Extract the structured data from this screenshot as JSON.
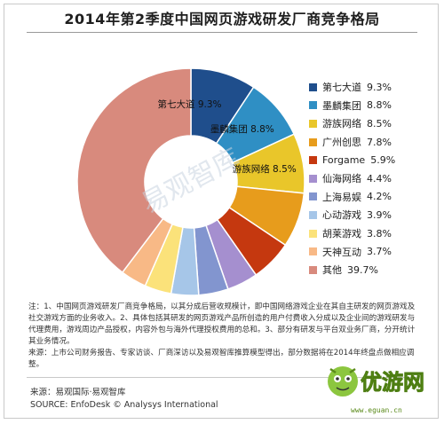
{
  "chart_data": {
    "type": "pie",
    "subtype": "donut",
    "title": "2014年第2季度中国网页游戏研发厂商竞争格局",
    "series": [
      {
        "name": "第七大道",
        "value": 9.3,
        "label": "9.3%",
        "color": "#1f4e8c"
      },
      {
        "name": "墨麟集团",
        "value": 8.8,
        "label": "8.8%",
        "color": "#2f8fc4"
      },
      {
        "name": "游族网络",
        "value": 8.5,
        "label": "8.5%",
        "color": "#e9c62a"
      },
      {
        "name": "广州创思",
        "value": 7.8,
        "label": "7.8%",
        "color": "#e79c1c"
      },
      {
        "name": "Forgame",
        "value": 5.9,
        "label": "5.9%",
        "color": "#c5380f"
      },
      {
        "name": "仙海网络",
        "value": 4.4,
        "label": "4.4%",
        "color": "#a58fcf"
      },
      {
        "name": "上海易娱",
        "value": 4.2,
        "label": "4.2%",
        "color": "#8295cf"
      },
      {
        "name": "心动游戏",
        "value": 3.9,
        "label": "3.9%",
        "color": "#a6c6e8"
      },
      {
        "name": "胡莱游戏",
        "value": 3.8,
        "label": "3.8%",
        "color": "#fbe27a"
      },
      {
        "name": "天神互动",
        "value": 3.7,
        "label": "3.7%",
        "color": "#f8b986"
      },
      {
        "name": "其他",
        "value": 39.7,
        "label": "39.7%",
        "color": "#d88a7d"
      }
    ],
    "inline_labels": [
      {
        "text": "第七大道  9.3%"
      },
      {
        "text": "墨麟集团  8.8%"
      },
      {
        "text": "游族网络  8.5%"
      }
    ],
    "legend_position": "right",
    "watermark": "易观智库"
  },
  "notes": {
    "note_text": "注：1、中国网页游戏研发厂商竞争格局，以其分成后营收规模计，即中国网络游戏企业在其自主研发的网页游戏及社交游戏方面的业务收入。2、具体包括其研发的网页游戏产品所创造的用户付费收入分成以及企业间的游戏研发与代理费用，游戏周边产品授权，内容外包与海外代理授权费用的总和。3、部分有研发与平台双业务厂商，分开统计其业务情况。",
    "source_text": "来源：上市公司财务报告、专家访谈、厂商深访以及易观智库推算模型得出，部分数据将在2014年终盘点做相应调整。"
  },
  "footer": {
    "source_cn": "来源：易观国际·易观智库",
    "source_en": "SOURCE: EnfoDesk © Analysys International",
    "site_url": "www.eguan.cn",
    "brand_text": "优游网"
  }
}
